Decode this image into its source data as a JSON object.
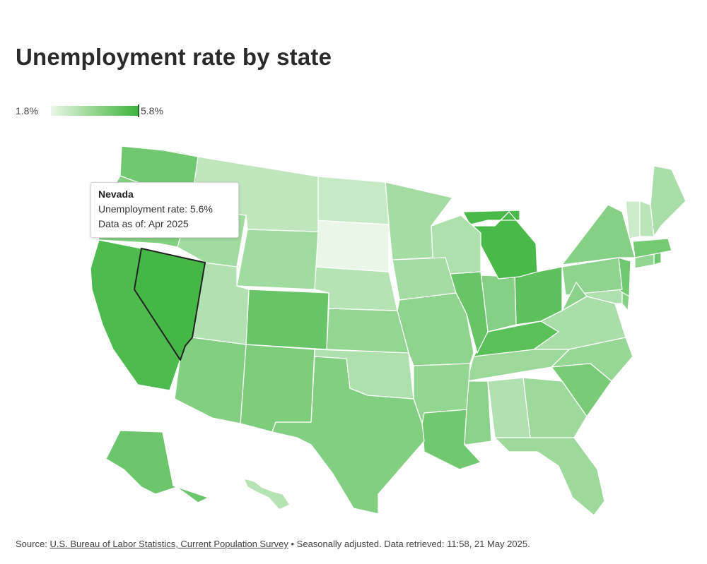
{
  "title": "Unemployment rate by state",
  "legend": {
    "min_label": "1.8%",
    "max_label": "5.8%",
    "min": 1.8,
    "max": 5.8,
    "color_low": "#eaf7e8",
    "color_high": "#3cb43c"
  },
  "tooltip": {
    "state": "Nevada",
    "rate_label": "Unemployment rate:",
    "rate_value": "5.6%",
    "date_label": "Data as of:",
    "date_value": "Apr 2025"
  },
  "source": {
    "prefix": "Source:",
    "link_text": "U.S. Bureau of Labor Statistics, Current Population Survey",
    "suffix": "• Seasonally adjusted. Data retrieved: 11:58, 21 May 2025."
  },
  "highlighted_state": "NV",
  "chart_data": {
    "type": "choropleth",
    "units": "%",
    "period": "Apr 2025",
    "values": {
      "WA": 4.6,
      "OR": 4.2,
      "CA": 5.4,
      "NV": 5.6,
      "ID": 3.5,
      "MT": 2.8,
      "WY": 3.5,
      "UT": 3.1,
      "AZ": 4.2,
      "CO": 4.8,
      "NM": 4.3,
      "ND": 2.6,
      "SD": 1.8,
      "NE": 3.0,
      "KS": 3.8,
      "OK": 3.2,
      "TX": 4.2,
      "MN": 3.4,
      "IA": 3.4,
      "MO": 3.9,
      "AR": 3.8,
      "LA": 4.6,
      "WI": 3.2,
      "IL": 4.8,
      "MI": 5.5,
      "IN": 4.1,
      "OH": 5.0,
      "KY": 5.1,
      "TN": 3.6,
      "MS": 4.0,
      "AL": 3.1,
      "GA": 3.6,
      "FL": 3.6,
      "SC": 4.4,
      "NC": 3.7,
      "VA": 3.3,
      "WV": 4.0,
      "PA": 3.9,
      "NY": 4.1,
      "ME": 3.3,
      "NH": 2.9,
      "VT": 2.5,
      "MA": 4.5,
      "NJ": 4.6,
      "DE": 4.1,
      "MD": 3.2,
      "CT": 3.8,
      "RI": 4.6,
      "AK": 4.7,
      "HI": 3.0
    }
  }
}
